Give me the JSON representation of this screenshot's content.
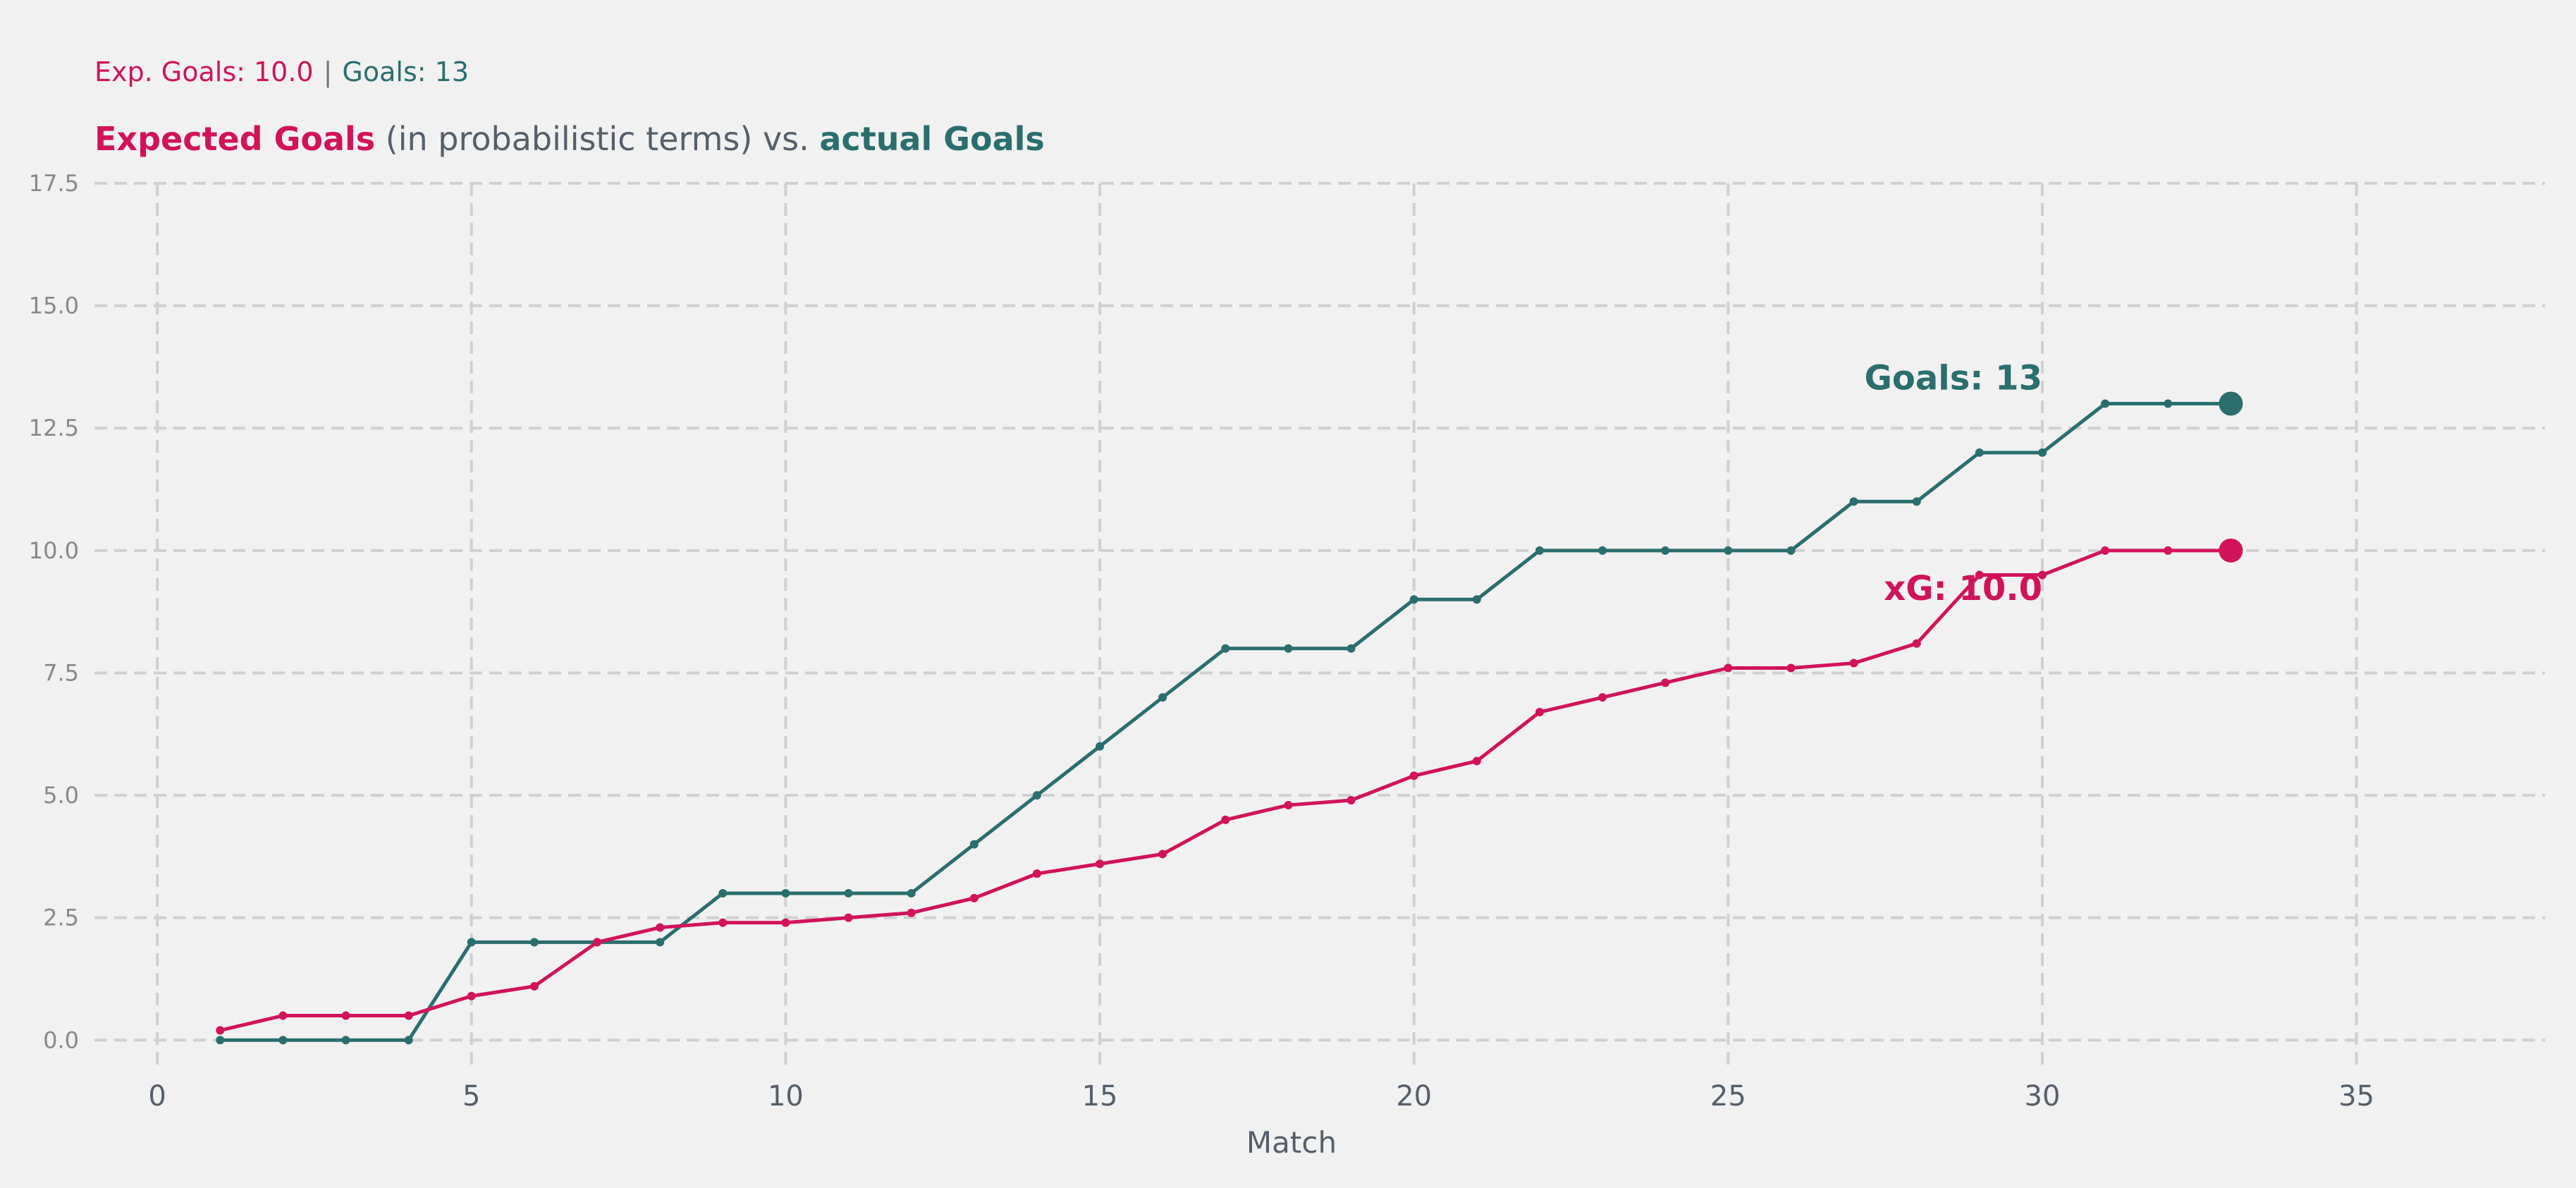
{
  "subtitle": {
    "xg_text": "Exp. Goals: 10.0",
    "separator": "|",
    "goals_text": "Goals: 13"
  },
  "title": {
    "part1": "Expected Goals",
    "part2": " (in probabilistic terms) vs. ",
    "part3": "actual Goals"
  },
  "colors": {
    "xg": "#d1135a",
    "goals": "#2a6e6e",
    "grid": "#d0d0d0",
    "tick": "#888888",
    "axis_label": "#555f6a",
    "background": "#f1f1f1"
  },
  "chart_data": {
    "type": "line",
    "xlabel": "Match",
    "ylabel": "",
    "xlim": [
      -1,
      38
    ],
    "ylim": [
      -0.5,
      17.5
    ],
    "xticks": [
      0,
      5,
      10,
      15,
      20,
      25,
      30,
      35
    ],
    "yticks": [
      0.0,
      2.5,
      5.0,
      7.5,
      10.0,
      12.5,
      15.0,
      17.5
    ],
    "grid": true,
    "x": [
      1,
      2,
      3,
      4,
      5,
      6,
      7,
      8,
      9,
      10,
      11,
      12,
      13,
      14,
      15,
      16,
      17,
      18,
      19,
      20,
      21,
      22,
      23,
      24,
      25,
      26,
      27,
      28,
      29,
      30,
      31,
      32,
      33
    ],
    "series": [
      {
        "key": "goals",
        "end_label": "Goals: 13",
        "values": [
          0,
          0,
          0,
          0,
          2,
          2,
          2,
          2,
          3,
          3,
          3,
          3,
          4,
          5,
          6,
          7,
          8,
          8,
          8,
          9,
          9,
          10,
          10,
          10,
          10,
          10,
          11,
          11,
          12,
          12,
          13,
          13,
          13
        ]
      },
      {
        "key": "xg",
        "end_label": "xG: 10.0",
        "values": [
          0.2,
          0.5,
          0.5,
          0.5,
          0.9,
          1.1,
          2.0,
          2.3,
          2.4,
          2.4,
          2.5,
          2.6,
          2.9,
          3.4,
          3.6,
          3.8,
          4.5,
          4.8,
          4.9,
          5.4,
          5.7,
          6.7,
          7.0,
          7.3,
          7.6,
          7.6,
          7.7,
          8.1,
          9.5,
          9.5,
          10.0,
          10.0,
          10.0
        ]
      }
    ]
  }
}
